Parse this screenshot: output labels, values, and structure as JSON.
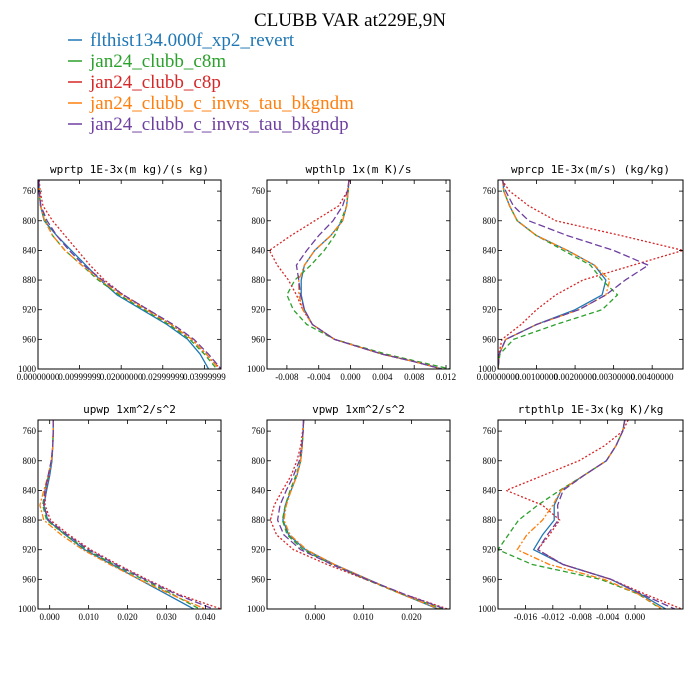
{
  "figure_title": "CLUBB VAR at229E,9N",
  "legend": [
    {
      "label": "flthist134.000f_xp2_revert",
      "color": "#1f77b4"
    },
    {
      "label": "jan24_clubb_c8m",
      "color": "#2ca02c"
    },
    {
      "label": "jan24_clubb_c8p",
      "color": "#d62728"
    },
    {
      "label": "jan24_clubb_c_invrs_tau_bkgndm",
      "color": "#ff7f0e"
    },
    {
      "label": "jan24_clubb_c_invrs_tau_bkgndp",
      "color": "#6f3fa0"
    }
  ],
  "chart_data": [
    {
      "type": "line",
      "title": "wprtp  1E-3x(m kg)/(s kg)",
      "ylim": [
        1000,
        745
      ],
      "yticks": [
        760,
        800,
        840,
        880,
        920,
        960,
        1000
      ],
      "xlim": [
        0,
        0.044
      ],
      "xticks": [
        0,
        0.01,
        0.02,
        0.03,
        0.04
      ],
      "xtick_labels": [
        "0.00000000",
        "0.00999999",
        "0.02000000",
        "0.02999999",
        "0.03999999"
      ],
      "levels": [
        745,
        760,
        780,
        800,
        820,
        840,
        860,
        880,
        900,
        920,
        940,
        960,
        980,
        990,
        1000
      ],
      "series": [
        {
          "color": "#1f77b4",
          "dash": "solid",
          "x": [
            0.0002,
            0.0003,
            0.0006,
            0.0015,
            0.0045,
            0.008,
            0.0115,
            0.015,
            0.019,
            0.025,
            0.031,
            0.036,
            0.039,
            0.04,
            0.041
          ]
        },
        {
          "color": "#2ca02c",
          "dash": "dash",
          "x": [
            0.0002,
            0.0003,
            0.0006,
            0.0018,
            0.0035,
            0.0065,
            0.0105,
            0.0145,
            0.0195,
            0.0255,
            0.0315,
            0.0365,
            0.04,
            0.0415,
            0.043
          ]
        },
        {
          "color": "#d62728",
          "dash": "dot",
          "x": [
            0.0003,
            0.0005,
            0.0012,
            0.0035,
            0.0065,
            0.0095,
            0.0125,
            0.016,
            0.0205,
            0.0265,
            0.032,
            0.037,
            0.0405,
            0.042,
            0.044
          ]
        },
        {
          "color": "#ff7f0e",
          "dash": "dashdot",
          "x": [
            0.0002,
            0.0003,
            0.0006,
            0.0016,
            0.0035,
            0.0065,
            0.0105,
            0.015,
            0.02,
            0.026,
            0.032,
            0.037,
            0.0405,
            0.042,
            0.0435
          ]
        },
        {
          "color": "#6f3fa0",
          "dash": "dashlong",
          "x": [
            0.0002,
            0.0003,
            0.0007,
            0.0022,
            0.0045,
            0.0075,
            0.011,
            0.0155,
            0.0205,
            0.0265,
            0.0325,
            0.0375,
            0.041,
            0.0425,
            0.044
          ]
        }
      ]
    },
    {
      "type": "line",
      "title": "wpthlp  1x(m K)/s",
      "ylim": [
        1000,
        745
      ],
      "yticks": [
        760,
        800,
        840,
        880,
        920,
        960,
        1000
      ],
      "xlim": [
        -0.0105,
        0.0125
      ],
      "xticks": [
        -0.008,
        -0.004,
        0,
        0.004,
        0.008,
        0.012
      ],
      "xtick_labels": [
        "-0.008",
        "-0.004",
        "0.000",
        "0.004",
        "0.008",
        "0.012"
      ],
      "levels": [
        745,
        760,
        780,
        800,
        820,
        840,
        860,
        880,
        900,
        920,
        940,
        960,
        980,
        990,
        1000
      ],
      "series": [
        {
          "color": "#1f77b4",
          "dash": "solid",
          "x": [
            -0.0002,
            -0.0003,
            -0.0005,
            -0.001,
            -0.0025,
            -0.0045,
            -0.0058,
            -0.0062,
            -0.0062,
            -0.0058,
            -0.0048,
            -0.002,
            0.004,
            0.008,
            0.0115
          ]
        },
        {
          "color": "#2ca02c",
          "dash": "dash",
          "x": [
            -0.0002,
            -0.0003,
            -0.0005,
            -0.0012,
            -0.002,
            -0.0033,
            -0.005,
            -0.007,
            -0.008,
            -0.0072,
            -0.0055,
            -0.002,
            0.0045,
            0.0085,
            0.0125
          ]
        },
        {
          "color": "#d62728",
          "dash": "dot",
          "x": [
            -0.0001,
            -0.0004,
            -0.0015,
            -0.0045,
            -0.0075,
            -0.0102,
            -0.0092,
            -0.0078,
            -0.0068,
            -0.006,
            -0.0048,
            -0.002,
            0.004,
            0.008,
            0.0115
          ]
        },
        {
          "color": "#ff7f0e",
          "dash": "dashdot",
          "x": [
            -0.0002,
            -0.0003,
            -0.0005,
            -0.001,
            -0.0025,
            -0.0045,
            -0.0058,
            -0.0065,
            -0.0065,
            -0.006,
            -0.0048,
            -0.002,
            0.004,
            0.008,
            0.0115
          ]
        },
        {
          "color": "#6f3fa0",
          "dash": "dashlong",
          "x": [
            -0.0002,
            -0.0004,
            -0.001,
            -0.0022,
            -0.004,
            -0.0055,
            -0.0068,
            -0.0065,
            -0.0063,
            -0.0058,
            -0.0048,
            -0.002,
            0.004,
            0.008,
            0.0115
          ]
        }
      ]
    },
    {
      "type": "line",
      "title": "wprcp  1E-3x(m/s) (kg/kg)",
      "ylim": [
        1000,
        745
      ],
      "yticks": [
        760,
        800,
        840,
        880,
        920,
        960,
        1000
      ],
      "xlim": [
        0,
        0.0048
      ],
      "xticks": [
        0,
        0.001,
        0.002,
        0.003,
        0.004
      ],
      "xtick_labels": [
        "0.00000000",
        "0.00100000",
        "0.00200000",
        "0.00300000",
        "0.00400000"
      ],
      "levels": [
        745,
        760,
        780,
        800,
        820,
        840,
        860,
        880,
        900,
        920,
        940,
        960,
        980,
        1000
      ],
      "series": [
        {
          "color": "#1f77b4",
          "dash": "solid",
          "x": [
            0.00012,
            0.00015,
            0.0003,
            0.0005,
            0.001,
            0.0018,
            0.0025,
            0.0028,
            0.0027,
            0.002,
            0.001,
            0.0002,
            3e-05,
            0
          ]
        },
        {
          "color": "#2ca02c",
          "dash": "dash",
          "x": [
            0.00012,
            0.00015,
            0.0003,
            0.0005,
            0.001,
            0.0017,
            0.0024,
            0.0027,
            0.0031,
            0.0027,
            0.0015,
            0.0004,
            5e-05,
            0
          ]
        },
        {
          "color": "#d62728",
          "dash": "dot",
          "x": [
            0.0001,
            0.0003,
            0.0008,
            0.0015,
            0.0032,
            0.0048,
            0.0035,
            0.0022,
            0.0015,
            0.001,
            0.0006,
            0.0001,
            2e-05,
            0
          ]
        },
        {
          "color": "#ff7f0e",
          "dash": "dashdot",
          "x": [
            0.00012,
            0.00015,
            0.0003,
            0.0005,
            0.001,
            0.0018,
            0.0025,
            0.0029,
            0.0028,
            0.0021,
            0.001,
            0.0002,
            3e-05,
            0
          ]
        },
        {
          "color": "#6f3fa0",
          "dash": "dashlong",
          "x": [
            0.00012,
            0.0002,
            0.0004,
            0.0008,
            0.0018,
            0.003,
            0.0039,
            0.0033,
            0.0028,
            0.0021,
            0.001,
            0.0002,
            3e-05,
            0
          ]
        }
      ]
    },
    {
      "type": "line",
      "title": "upwp  1xm^2/s^2",
      "ylim": [
        1000,
        745
      ],
      "yticks": [
        760,
        800,
        840,
        880,
        920,
        960,
        1000
      ],
      "xlim": [
        -0.003,
        0.044
      ],
      "xticks": [
        0,
        0.01,
        0.02,
        0.03,
        0.04
      ],
      "xtick_labels": [
        "0.000",
        "0.010",
        "0.020",
        "0.030",
        "0.040"
      ],
      "levels": [
        745,
        760,
        780,
        800,
        820,
        840,
        860,
        880,
        900,
        920,
        940,
        960,
        980,
        1000
      ],
      "series": [
        {
          "color": "#1f77b4",
          "dash": "solid",
          "x": [
            0.0009,
            0.0009,
            0.0008,
            0.0006,
            0,
            -0.0008,
            -0.0015,
            -0.0005,
            0.004,
            0.009,
            0.016,
            0.023,
            0.03,
            0.037
          ]
        },
        {
          "color": "#2ca02c",
          "dash": "dash",
          "x": [
            0.0009,
            0.0009,
            0.0008,
            0.0005,
            -0.0003,
            -0.0012,
            -0.0018,
            -0.0008,
            0.004,
            0.0095,
            0.0165,
            0.024,
            0.0315,
            0.0385
          ]
        },
        {
          "color": "#d62728",
          "dash": "dot",
          "x": [
            0.0009,
            0.0009,
            0.0008,
            0.0004,
            -0.0002,
            -0.001,
            -0.0012,
            0.0002,
            0.005,
            0.0105,
            0.0175,
            0.025,
            0.033,
            0.044
          ]
        },
        {
          "color": "#ff7f0e",
          "dash": "dashdot",
          "x": [
            0.0009,
            0.0009,
            0.0008,
            0.0005,
            -0.0004,
            -0.0015,
            -0.0025,
            -0.0015,
            0.003,
            0.0085,
            0.0155,
            0.023,
            0.031,
            0.04
          ]
        },
        {
          "color": "#6f3fa0",
          "dash": "dashlong",
          "x": [
            0.0009,
            0.0009,
            0.0008,
            0.0004,
            -0.0004,
            -0.0012,
            -0.0015,
            -0.0003,
            0.0045,
            0.01,
            0.017,
            0.0245,
            0.0325,
            0.042
          ]
        }
      ]
    },
    {
      "type": "line",
      "title": "vpwp  1xm^2/s^2",
      "ylim": [
        1000,
        745
      ],
      "yticks": [
        760,
        800,
        840,
        880,
        920,
        960,
        1000
      ],
      "xlim": [
        -0.01,
        0.028
      ],
      "xticks": [
        0,
        0.01,
        0.02
      ],
      "xtick_labels": [
        "0.000",
        "0.010",
        "0.020"
      ],
      "levels": [
        745,
        760,
        780,
        800,
        820,
        840,
        860,
        880,
        900,
        920,
        940,
        960,
        980,
        1000
      ],
      "series": [
        {
          "color": "#1f77b4",
          "dash": "solid",
          "x": [
            -0.0024,
            -0.0025,
            -0.0027,
            -0.003,
            -0.0038,
            -0.005,
            -0.0062,
            -0.0067,
            -0.0055,
            -0.002,
            0.004,
            0.011,
            0.018,
            0.0255
          ]
        },
        {
          "color": "#2ca02c",
          "dash": "dash",
          "x": [
            -0.0024,
            -0.0025,
            -0.0027,
            -0.003,
            -0.004,
            -0.0052,
            -0.0062,
            -0.0068,
            -0.0058,
            -0.0025,
            0.0035,
            0.0105,
            0.018,
            0.0265
          ]
        },
        {
          "color": "#d62728",
          "dash": "dot",
          "x": [
            -0.0024,
            -0.0026,
            -0.003,
            -0.0038,
            -0.005,
            -0.0068,
            -0.0085,
            -0.0093,
            -0.008,
            -0.0045,
            0.0025,
            0.0105,
            0.0185,
            0.0275
          ]
        },
        {
          "color": "#ff7f0e",
          "dash": "dashdot",
          "x": [
            -0.0024,
            -0.0025,
            -0.0027,
            -0.003,
            -0.0038,
            -0.005,
            -0.006,
            -0.0065,
            -0.0052,
            -0.0018,
            0.004,
            0.011,
            0.018,
            0.0258
          ]
        },
        {
          "color": "#6f3fa0",
          "dash": "dashlong",
          "x": [
            -0.0024,
            -0.0025,
            -0.0028,
            -0.0033,
            -0.0045,
            -0.006,
            -0.0073,
            -0.0078,
            -0.0065,
            -0.003,
            0.0035,
            0.0108,
            0.0185,
            0.027
          ]
        }
      ]
    },
    {
      "type": "line",
      "title": "rtpthlp  1E-3x(kg K)/kg",
      "ylim": [
        1000,
        745
      ],
      "yticks": [
        760,
        800,
        840,
        880,
        920,
        960,
        1000
      ],
      "xlim": [
        -0.02,
        0.007
      ],
      "xticks": [
        -0.016,
        -0.012,
        -0.008,
        -0.004,
        0
      ],
      "xtick_labels": [
        "-0.016",
        "-0.012",
        "-0.008",
        "-0.004",
        "0.000"
      ],
      "levels": [
        745,
        760,
        780,
        800,
        820,
        840,
        860,
        880,
        900,
        920,
        940,
        960,
        980,
        1000
      ],
      "series": [
        {
          "color": "#1f77b4",
          "dash": "solid",
          "x": [
            -0.0015,
            -0.0018,
            -0.0028,
            -0.0042,
            -0.0075,
            -0.0108,
            -0.0118,
            -0.0118,
            -0.0135,
            -0.0148,
            -0.0105,
            -0.0035,
            0.0008,
            0.0045
          ]
        },
        {
          "color": "#2ca02c",
          "dash": "dash",
          "x": [
            -0.0015,
            -0.0018,
            -0.0028,
            -0.0042,
            -0.0075,
            -0.011,
            -0.0142,
            -0.017,
            -0.0185,
            -0.02,
            -0.015,
            -0.005,
            0.0005,
            0.0038
          ]
        },
        {
          "color": "#d62728",
          "dash": "dot",
          "x": [
            -0.001,
            -0.0018,
            -0.0045,
            -0.0082,
            -0.0135,
            -0.0188,
            -0.0135,
            -0.011,
            -0.0125,
            -0.0142,
            -0.0105,
            -0.0035,
            0.0015,
            0.0068
          ]
        },
        {
          "color": "#ff7f0e",
          "dash": "dashdot",
          "x": [
            -0.0015,
            -0.0018,
            -0.0028,
            -0.0042,
            -0.0075,
            -0.0108,
            -0.012,
            -0.0135,
            -0.0158,
            -0.0172,
            -0.0125,
            -0.0045,
            0.0005,
            0.004
          ]
        },
        {
          "color": "#6f3fa0",
          "dash": "dashlong",
          "x": [
            -0.0015,
            -0.0018,
            -0.0028,
            -0.0042,
            -0.0075,
            -0.0105,
            -0.0113,
            -0.0112,
            -0.0128,
            -0.0142,
            -0.0105,
            -0.0035,
            0.001,
            0.0058
          ]
        }
      ]
    }
  ]
}
